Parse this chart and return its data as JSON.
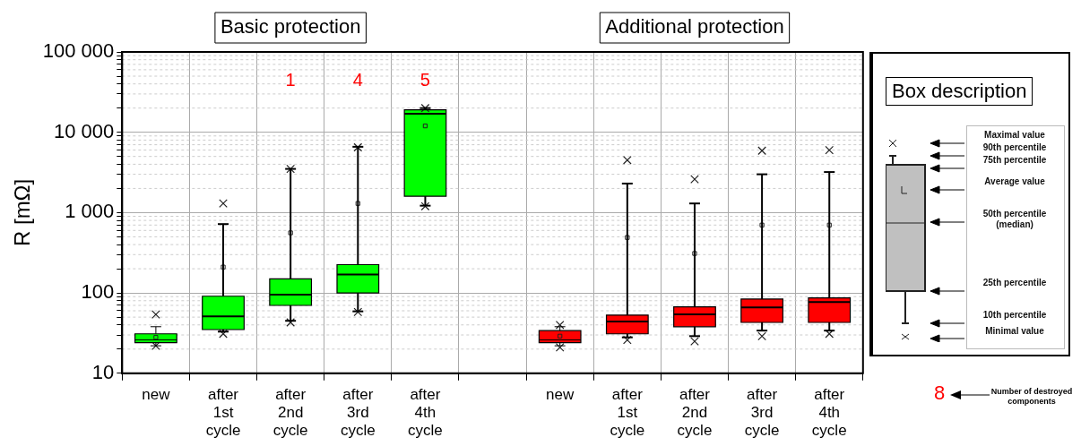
{
  "chart_data": {
    "type": "box",
    "ylabel": "R [mΩ]",
    "log": "y",
    "grid": true,
    "legend": false,
    "categories": [
      "new",
      "after 1st cycle",
      "after 2nd cycle",
      "after 3rd cycle",
      "after 4th cycle",
      null,
      "new",
      "after 1st cycle",
      "after 2nd cycle",
      "after 3rd cycle",
      "after 4th cycle"
    ],
    "ylim": [
      10,
      100000
    ],
    "yticks": [
      10,
      {
        "value": 20,
        "label": null
      },
      {
        "value": 30,
        "label": null
      },
      {
        "value": 40,
        "label": null
      },
      {
        "value": 50,
        "label": null
      },
      {
        "value": 60,
        "label": null
      },
      {
        "value": 70,
        "label": null
      },
      {
        "value": 80,
        "label": null
      },
      {
        "value": 90,
        "label": null
      },
      100,
      {
        "value": 200,
        "label": null
      },
      {
        "value": 300,
        "label": null
      },
      {
        "value": 400,
        "label": null
      },
      {
        "value": 500,
        "label": null
      },
      {
        "value": 600,
        "label": null
      },
      {
        "value": 700,
        "label": null
      },
      {
        "value": 800,
        "label": null
      },
      {
        "value": 900,
        "label": null
      },
      {
        "value": 1000,
        "label": "1 000"
      },
      {
        "value": 2000,
        "label": null
      },
      {
        "value": 3000,
        "label": null
      },
      {
        "value": 4000,
        "label": null
      },
      {
        "value": 5000,
        "label": null
      },
      {
        "value": 6000,
        "label": null
      },
      {
        "value": 7000,
        "label": null
      },
      {
        "value": 8000,
        "label": null
      },
      {
        "value": 9000,
        "label": null
      },
      {
        "value": 10000,
        "label": "10 000"
      },
      {
        "value": 20000,
        "label": null
      },
      {
        "value": 30000,
        "label": null
      },
      {
        "value": 40000,
        "label": null
      },
      {
        "value": 50000,
        "label": null
      },
      {
        "value": 60000,
        "label": null
      },
      {
        "value": 70000,
        "label": null
      },
      {
        "value": 80000,
        "label": null
      },
      {
        "value": 90000,
        "label": null
      },
      {
        "value": 100000,
        "label": "100 000"
      }
    ],
    "series": [
      {
        "color": "#00ff00",
        "boxes": [
          {
            "low": 22,
            "q1": 24,
            "median": 26,
            "q3": 31,
            "high": 38,
            "mean": 28,
            "outliers": [
              22,
              54
            ]
          },
          {
            "low": 33,
            "q1": 35,
            "median": 51,
            "q3": 91,
            "high": 720,
            "mean": 210,
            "outliers": [
              31,
              1300
            ]
          },
          {
            "low": 45,
            "q1": 70,
            "median": 95,
            "q3": 150,
            "high": 3500,
            "mean": 560,
            "outliers": [
              43,
              3500
            ]
          },
          {
            "low": 59,
            "q1": 100,
            "median": 170,
            "q3": 225,
            "high": 6600,
            "mean": 1300,
            "outliers": [
              58,
              6500
            ]
          },
          {
            "low": 1220,
            "q1": 1600,
            "median": 17000,
            "q3": 19000,
            "high": 20000,
            "mean": 12000,
            "outliers": [
              1200,
              20000
            ]
          },
          null,
          null,
          null,
          null,
          null,
          null
        ]
      },
      {
        "color": "#ff0000",
        "boxes": [
          null,
          null,
          null,
          null,
          null,
          null,
          {
            "low": 22,
            "q1": 24,
            "median": 26,
            "q3": 34,
            "high": 38,
            "mean": 29,
            "outliers": [
              21,
              40
            ]
          },
          {
            "low": 28,
            "q1": 31,
            "median": 44,
            "q3": 53,
            "high": 2300,
            "mean": 490,
            "outliers": [
              26,
              4500
            ]
          },
          {
            "low": 29,
            "q1": 38,
            "median": 54,
            "q3": 67,
            "high": 1300,
            "mean": 310,
            "outliers": [
              25,
              2600
            ]
          },
          {
            "low": 34,
            "q1": 43,
            "median": 66,
            "q3": 84,
            "high": 3000,
            "mean": 700,
            "outliers": [
              29,
              5900
            ]
          },
          {
            "low": 34,
            "q1": 43,
            "median": 77,
            "q3": 87,
            "high": 3200,
            "mean": 700,
            "outliers": [
              31,
              6000
            ]
          }
        ]
      }
    ],
    "annotations": [
      "Basic protection",
      "Additional protection",
      "1",
      "4",
      "5",
      "Box description",
      "Maximal value",
      "90th percentile",
      "75th percentile",
      "Average value",
      "50th percentile (median)",
      "25th percentile",
      "10th percentile",
      "Minimal value",
      "8",
      "Number of destroyed components"
    ]
  }
}
